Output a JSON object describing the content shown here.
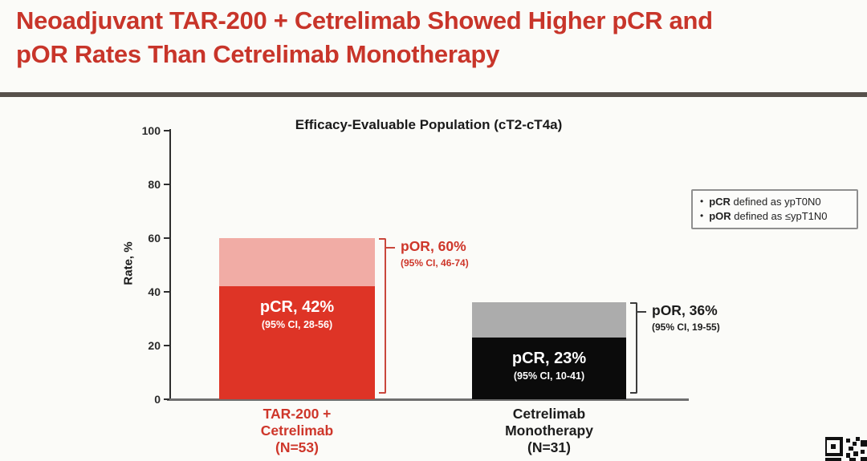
{
  "slide": {
    "title_lines": [
      "Neoadjuvant TAR-200 + Cetrelimab Showed Higher pCR and",
      "pOR Rates Than Cetrelimab Monotherapy"
    ],
    "title_color": "#C8352A"
  },
  "chart": {
    "title": "Efficacy-Evaluable Population (cT2-cT4a)",
    "y_axis_label": "Rate, %",
    "y_ticks": [
      100,
      80,
      60,
      40,
      20,
      0
    ]
  },
  "chart_data": {
    "type": "bar",
    "subtype": "overlaid-stacked",
    "title": "Efficacy-Evaluable Population (cT2-cT4a)",
    "xlabel": "",
    "ylabel": "Rate, %",
    "ylim": [
      0,
      100
    ],
    "grid": false,
    "legend_position": "none",
    "categories": [
      "TAR-200 + Cetrelimab (N=53)",
      "Cetrelimab Monotherapy (N=31)"
    ],
    "series": [
      {
        "name": "pCR",
        "values": [
          42,
          23
        ],
        "ci": [
          "95% CI, 28-56",
          "95% CI, 10-41"
        ],
        "colors": [
          "#DE3426",
          "#0B0B0B"
        ]
      },
      {
        "name": "pOR",
        "values": [
          60,
          36
        ],
        "ci": [
          "95% CI, 46-74",
          "95% CI, 19-55"
        ],
        "colors": [
          "#F1ACA5",
          "#ACACAC"
        ]
      }
    ]
  },
  "bars": [
    {
      "name_lines": [
        "TAR-200 +",
        "Cetrelimab",
        "(N=53)"
      ],
      "pcr_label": "pCR, 42%",
      "pcr_ci": "(95% CI, 28-56)",
      "por_label": "pOR, 60%",
      "por_ci": "(95% CI, 46-74)",
      "accent": "#CE362A",
      "bracket_color": "#C9473C"
    },
    {
      "name_lines": [
        "Cetrelimab",
        "Monotherapy",
        "(N=31)"
      ],
      "pcr_label": "pCR, 23%",
      "pcr_ci": "(95% CI, 10-41)",
      "por_label": "pOR, 36%",
      "por_ci": "(95% CI, 19-55)",
      "accent": "#1C1C1C",
      "bracket_color": "#3C3C3C"
    }
  ],
  "definitions": [
    {
      "term": "pCR",
      "rest": " defined as ypT0N0"
    },
    {
      "term": "pOR",
      "rest": " defined as ≤ypT1N0"
    }
  ]
}
